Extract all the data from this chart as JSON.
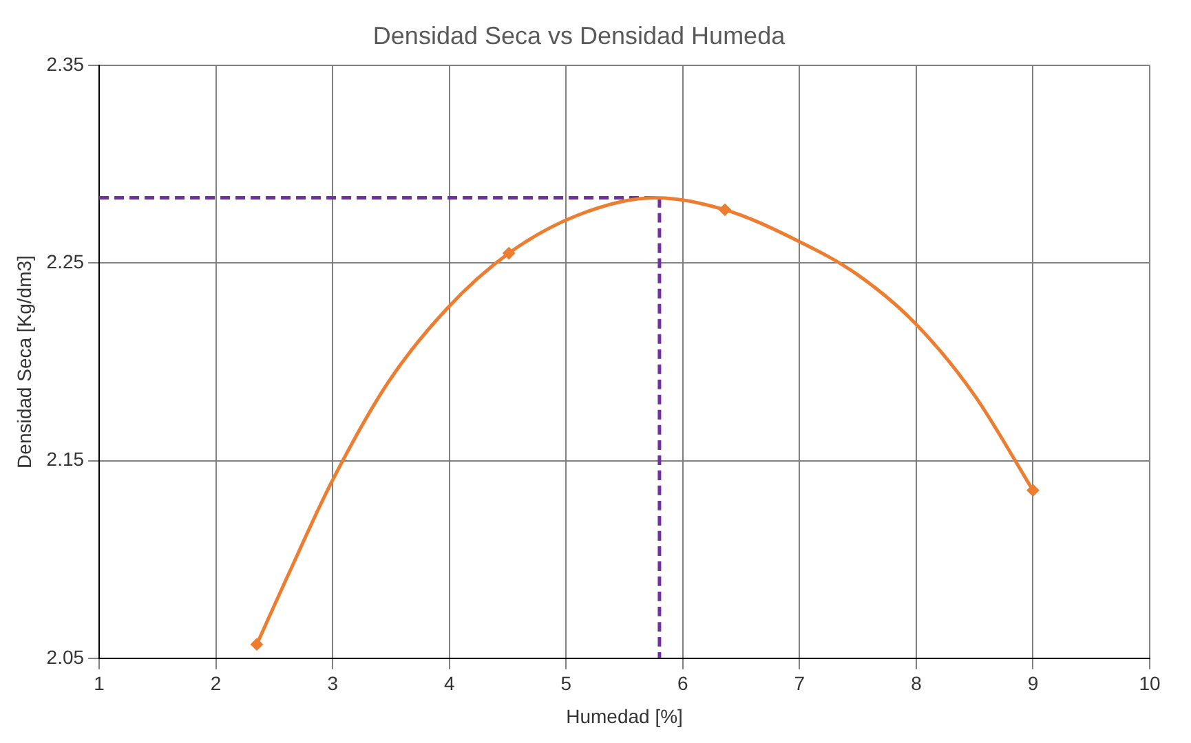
{
  "chart_data": {
    "type": "line",
    "title": "Densidad Seca vs Densidad Humeda",
    "xlabel": "Humedad [%]",
    "ylabel": "Densidad Seca [Kg/dm3]",
    "xlim": [
      1,
      10
    ],
    "xticks": [
      1,
      2,
      3,
      4,
      5,
      6,
      7,
      8,
      9,
      10
    ],
    "ylim": [
      2.05,
      2.35
    ],
    "yticks": [
      2.05,
      2.15,
      2.25,
      2.35
    ],
    "grid": true,
    "legend": false,
    "series": [
      {
        "color": "#ed7d31",
        "marker": "none",
        "line_style": "solid",
        "x": [
          2.35,
          2.61,
          2.99,
          3.48,
          3.98,
          4.51,
          5.09,
          5.76,
          6.36,
          6.96,
          7.5,
          8.0,
          8.5,
          9.0
        ],
        "values": [
          2.057,
          2.091,
          2.139,
          2.19,
          2.227,
          2.255,
          2.274,
          2.283,
          2.277,
          2.262,
          2.244,
          2.219,
          2.183,
          2.135
        ]
      },
      {
        "type": "scatter",
        "color": "#ed7d31",
        "marker": "diamond",
        "x": [
          2.35,
          4.51,
          6.36,
          9.0
        ],
        "values": [
          2.057,
          2.255,
          2.277,
          2.135
        ]
      },
      {
        "color": "#7030a0",
        "marker": "none",
        "line_style": "dashed",
        "x": [
          1,
          5.8,
          5.8
        ],
        "values": [
          2.283,
          2.283,
          2.05
        ]
      }
    ]
  }
}
